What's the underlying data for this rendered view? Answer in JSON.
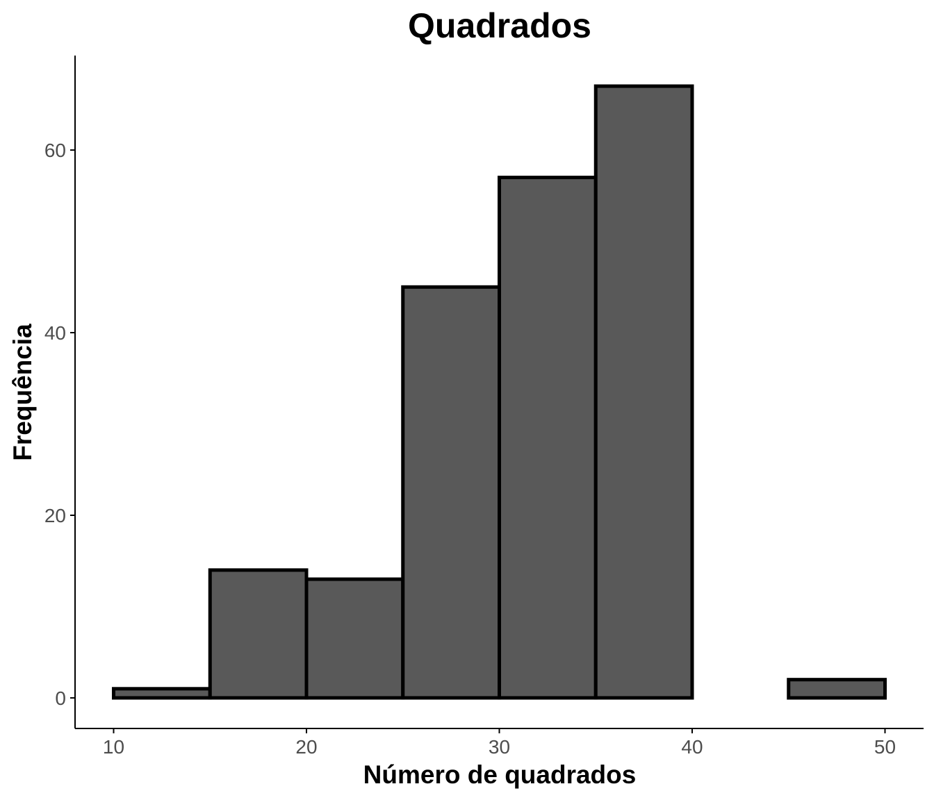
{
  "chart_data": {
    "type": "bar",
    "title": "Quadrados",
    "xlabel": "Número de quadrados",
    "ylabel": "Frequência",
    "bins": [
      {
        "x0": 10,
        "x1": 15,
        "count": 1
      },
      {
        "x0": 15,
        "x1": 20,
        "count": 14
      },
      {
        "x0": 20,
        "x1": 25,
        "count": 13
      },
      {
        "x0": 25,
        "x1": 30,
        "count": 45
      },
      {
        "x0": 30,
        "x1": 35,
        "count": 57
      },
      {
        "x0": 35,
        "x1": 40,
        "count": 67
      },
      {
        "x0": 40,
        "x1": 45,
        "count": 0
      },
      {
        "x0": 45,
        "x1": 50,
        "count": 2
      }
    ],
    "x_ticks": [
      10,
      20,
      30,
      40,
      50
    ],
    "y_ticks": [
      0,
      20,
      40,
      60
    ],
    "x_tick_labels": [
      "10",
      "20",
      "30",
      "40",
      "50"
    ],
    "y_tick_labels": [
      "0",
      "20",
      "40",
      "60"
    ],
    "xlim": [
      8,
      52
    ],
    "ylim": [
      -3.35,
      70.35
    ],
    "grid": false,
    "legend": "none",
    "colors": {
      "bar_fill": "#595959",
      "bar_stroke": "#000000",
      "axis": "#000000",
      "tick_label": "#4d4d4d"
    }
  }
}
